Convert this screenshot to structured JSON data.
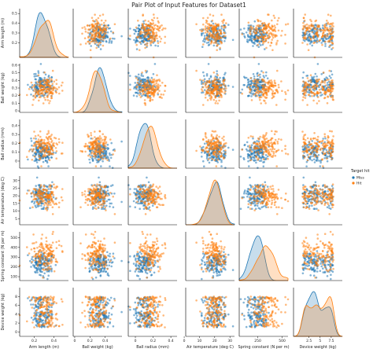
{
  "title": "Pair Plot of Input Features for Dataset1",
  "colors": {
    "miss": "#1f77b4",
    "hit": "#ff7f0e",
    "axis": "#000000"
  },
  "chart_data": {
    "type": "scatter",
    "subtype": "pairplot",
    "title": "Pair Plot of Input Features for Dataset1",
    "features": [
      {
        "key": "arm",
        "label": "Arm length (m)",
        "range": [
          0.05,
          0.55
        ],
        "xticks": [
          0.2,
          0.4
        ],
        "yticks": [
          0.2,
          0.3,
          0.4,
          0.5
        ]
      },
      {
        "key": "ball",
        "label": "Ball weight (kg)",
        "range": [
          -0.02,
          0.62
        ],
        "xticks": [
          0.0,
          0.2,
          0.4
        ],
        "yticks": [
          0.0,
          0.1,
          0.2,
          0.3,
          0.4,
          0.5,
          0.6
        ]
      },
      {
        "key": "radius",
        "label": "Ball radius (mm)",
        "range": [
          -0.08,
          0.47
        ],
        "xticks": [
          0.0,
          0.2,
          0.4
        ],
        "yticks": [
          0.0,
          0.1,
          0.2,
          0.3,
          0.4
        ]
      },
      {
        "key": "temp",
        "label": "Air temperature (deg C)",
        "range": [
          1,
          33
        ],
        "xticks": [
          0,
          10,
          20,
          30
        ],
        "yticks": [
          5,
          10,
          15,
          20,
          25,
          30
        ]
      },
      {
        "key": "spring",
        "label": "Spring constant (N per m)",
        "range": [
          60,
          560
        ],
        "xticks": [
          250,
          500
        ],
        "yticks": [
          100,
          200,
          300,
          400,
          500
        ]
      },
      {
        "key": "device",
        "label": "Device weight (kg)",
        "range": [
          -1,
          10
        ],
        "xticks": [
          2.5,
          5.0,
          7.5
        ],
        "yticks": [
          0,
          2,
          4,
          6,
          8
        ]
      }
    ],
    "legend": {
      "title": "Target hit",
      "placement": "right",
      "entries": [
        {
          "name": "Miss",
          "color": "#1f77b4"
        },
        {
          "name": "Hit",
          "color": "#ff7f0e"
        }
      ]
    },
    "distributions": {
      "arm": {
        "Miss": {
          "mean": 0.28,
          "sd": 0.065
        },
        "Hit": {
          "mean": 0.31,
          "sd": 0.07
        }
      },
      "ball": {
        "Miss": {
          "mean": 0.33,
          "sd": 0.075
        },
        "Hit": {
          "mean": 0.28,
          "sd": 0.08
        }
      },
      "radius": {
        "Miss": {
          "mean": 0.09,
          "sd": 0.065
        },
        "Hit": {
          "mean": 0.16,
          "sd": 0.075
        }
      },
      "temp": {
        "Miss": {
          "mean": 20,
          "sd": 4.0
        },
        "Hit": {
          "mean": 20,
          "sd": 4.0
        }
      },
      "spring": {
        "Miss": {
          "mean": 235,
          "sd": 55
        },
        "Hit": {
          "mean": 330,
          "sd": 85
        }
      },
      "device": {
        "Miss": {
          "range": [
            1,
            8
          ]
        },
        "Hit": {
          "range": [
            1,
            8
          ]
        }
      }
    },
    "points_per_group": 150,
    "grid": false
  }
}
